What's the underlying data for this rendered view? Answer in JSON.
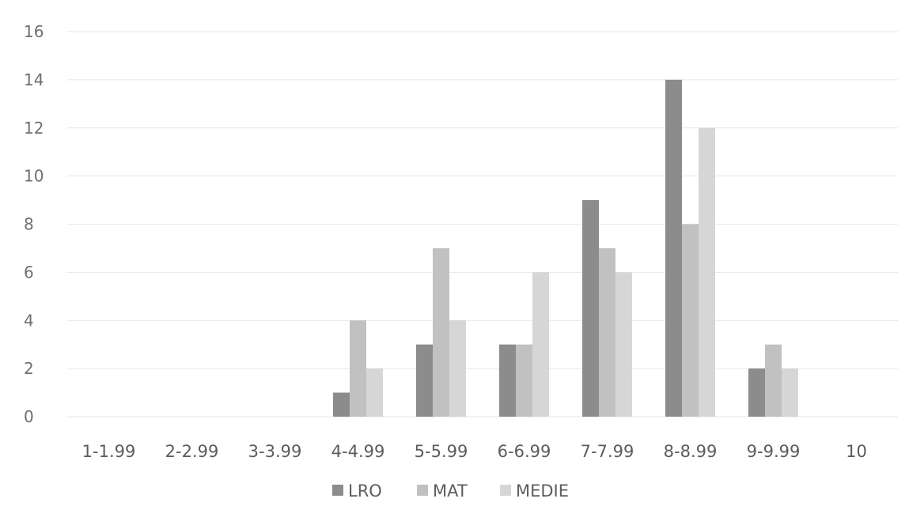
{
  "chart_data": {
    "type": "bar",
    "title": "",
    "xlabel": "",
    "ylabel": "",
    "ylim": [
      0,
      16
    ],
    "yticks": [
      "0",
      "2",
      "4",
      "6",
      "8",
      "10",
      "12",
      "14",
      "16"
    ],
    "grid": true,
    "legend_position": "bottom",
    "categories": [
      "1-1.99",
      "2-2.99",
      "3-3.99",
      "4-4.99",
      "5-5.99",
      "6-6.99",
      "7-7.99",
      "8-8.99",
      "9-9.99",
      "10"
    ],
    "series": [
      {
        "name": "LRO",
        "color": "#8c8c8c",
        "values": [
          0,
          0,
          0,
          1,
          3,
          3,
          9,
          14,
          2,
          0
        ]
      },
      {
        "name": "MAT",
        "color": "#c1c1c1",
        "values": [
          0,
          0,
          0,
          4,
          7,
          3,
          7,
          8,
          3,
          0
        ]
      },
      {
        "name": "MEDIE",
        "color": "#d6d6d6",
        "values": [
          0,
          0,
          0,
          2,
          4,
          6,
          6,
          12,
          2,
          0
        ]
      }
    ]
  }
}
